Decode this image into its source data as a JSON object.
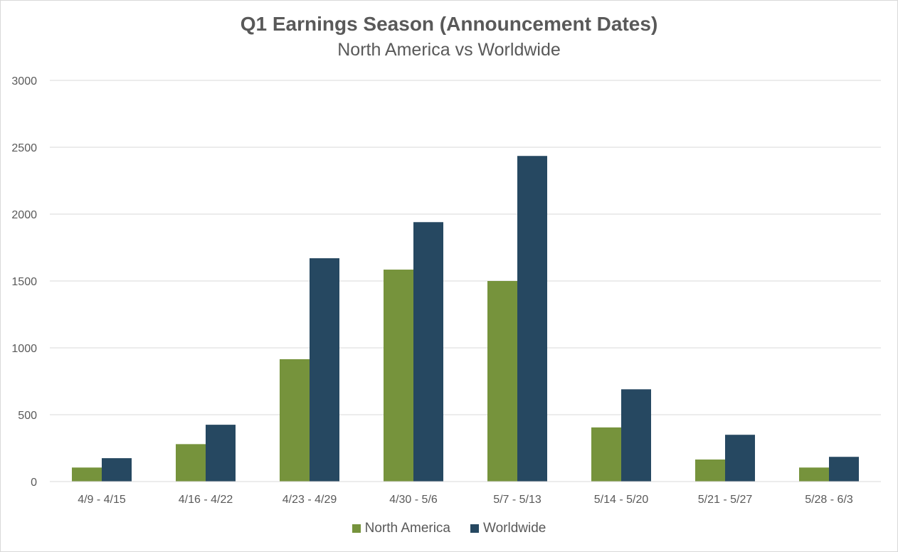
{
  "chart_data": {
    "type": "bar",
    "title": "Q1 Earnings Season (Announcement Dates)",
    "subtitle": "North America vs Worldwide",
    "categories": [
      "4/9 - 4/15",
      "4/16 - 4/22",
      "4/23 - 4/29",
      "4/30 - 5/6",
      "5/7 - 5/13",
      "5/14 - 5/20",
      "5/21 - 5/27",
      "5/28 - 6/3"
    ],
    "series": [
      {
        "name": "North America",
        "color": "#76933c",
        "values": [
          105,
          280,
          915,
          1585,
          1500,
          405,
          165,
          105
        ]
      },
      {
        "name": "Worldwide",
        "color": "#264861",
        "values": [
          175,
          425,
          1670,
          1940,
          2435,
          690,
          350,
          185
        ]
      }
    ],
    "ylim": [
      0,
      3000
    ],
    "yticks": [
      0,
      500,
      1000,
      1500,
      2000,
      2500,
      3000
    ],
    "grid": true,
    "legend_position": "bottom"
  }
}
